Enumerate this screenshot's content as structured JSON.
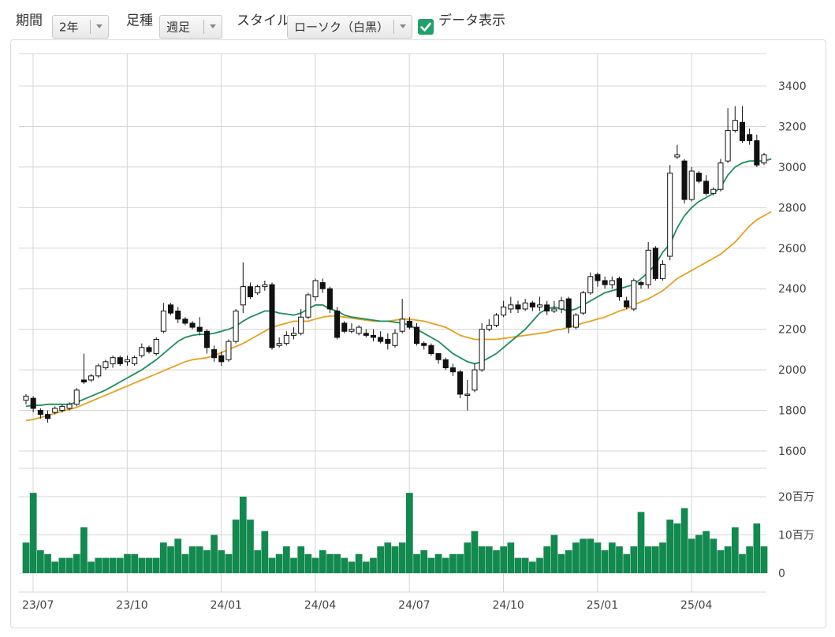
{
  "toolbar": {
    "period_label": "期間",
    "period_value": "2年",
    "interval_label": "足種",
    "interval_value": "週足",
    "style_label": "スタイル",
    "style_value": "ローソク（白黒）",
    "show_data_label": "データ表示",
    "show_data_checked": true
  },
  "colors": {
    "ma_short": "#1a8f5c",
    "ma_long": "#e8a020",
    "volume_bar": "#12894e",
    "candle_up_fill": "#ffffff",
    "candle_down_fill": "#111111",
    "checkbox": "#22a06b"
  },
  "chart_data": {
    "type": "candlestick",
    "x_ticks": [
      "23/07",
      "23/10",
      "24/01",
      "24/04",
      "24/07",
      "24/10",
      "25/01",
      "25/04"
    ],
    "x_tick_index": [
      0,
      13,
      26,
      39,
      52,
      65,
      78,
      91
    ],
    "y_ticks": [
      "1600",
      "1800",
      "2000",
      "2200",
      "2400",
      "2600",
      "2800",
      "3000",
      "3200",
      "3400"
    ],
    "ylim": [
      1500,
      3400
    ],
    "volume_ticks": [
      "0",
      "10百万",
      "20百万"
    ],
    "volume_ylim": [
      0,
      20
    ],
    "volume_unit": "百万",
    "candles": [
      [
        1850,
        1870,
        1830,
        1880,
        8
      ],
      [
        1860,
        1810,
        1790,
        1870,
        21
      ],
      [
        1800,
        1780,
        1760,
        1810,
        6
      ],
      [
        1780,
        1760,
        1740,
        1800,
        5
      ],
      [
        1790,
        1810,
        1780,
        1820,
        3
      ],
      [
        1800,
        1820,
        1790,
        1830,
        4
      ],
      [
        1810,
        1830,
        1800,
        1840,
        4
      ],
      [
        1830,
        1900,
        1820,
        1910,
        5
      ],
      [
        1950,
        1940,
        1930,
        2080,
        12
      ],
      [
        1950,
        1970,
        1940,
        1980,
        3
      ],
      [
        1970,
        2020,
        1960,
        2030,
        4
      ],
      [
        2010,
        2040,
        2000,
        2050,
        4
      ],
      [
        2030,
        2060,
        2010,
        2070,
        4
      ],
      [
        2060,
        2030,
        2020,
        2070,
        4
      ],
      [
        2040,
        2050,
        2020,
        2070,
        5
      ],
      [
        2030,
        2060,
        2020,
        2070,
        5
      ],
      [
        2070,
        2110,
        2060,
        2130,
        4
      ],
      [
        2110,
        2090,
        2080,
        2120,
        4
      ],
      [
        2080,
        2150,
        2070,
        2160,
        4
      ],
      [
        2190,
        2290,
        2180,
        2330,
        8
      ],
      [
        2320,
        2280,
        2270,
        2330,
        7
      ],
      [
        2290,
        2250,
        2230,
        2310,
        9
      ],
      [
        2250,
        2230,
        2220,
        2260,
        5
      ],
      [
        2230,
        2210,
        2200,
        2240,
        7
      ],
      [
        2210,
        2190,
        2170,
        2260,
        7
      ],
      [
        2190,
        2110,
        2080,
        2200,
        6
      ],
      [
        2100,
        2060,
        2040,
        2120,
        10
      ],
      [
        2070,
        2040,
        2020,
        2090,
        6
      ],
      [
        2050,
        2140,
        2040,
        2150,
        5
      ],
      [
        2140,
        2290,
        2130,
        2300,
        14
      ],
      [
        2320,
        2410,
        2280,
        2530,
        20
      ],
      [
        2410,
        2360,
        2350,
        2430,
        14
      ],
      [
        2380,
        2410,
        2370,
        2420,
        6
      ],
      [
        2410,
        2420,
        2390,
        2440,
        11
      ],
      [
        2420,
        2110,
        2100,
        2430,
        4
      ],
      [
        2120,
        2130,
        2110,
        2160,
        5
      ],
      [
        2130,
        2170,
        2120,
        2190,
        7
      ],
      [
        2170,
        2180,
        2150,
        2210,
        4
      ],
      [
        2180,
        2260,
        2170,
        2300,
        7
      ],
      [
        2260,
        2370,
        2250,
        2380,
        5
      ],
      [
        2360,
        2440,
        2340,
        2450,
        4
      ],
      [
        2430,
        2400,
        2380,
        2450,
        6
      ],
      [
        2400,
        2300,
        2280,
        2410,
        5
      ],
      [
        2290,
        2160,
        2150,
        2310,
        5
      ],
      [
        2230,
        2190,
        2180,
        2240,
        4
      ],
      [
        2190,
        2200,
        2180,
        2230,
        3
      ],
      [
        2180,
        2210,
        2170,
        2220,
        5
      ],
      [
        2180,
        2170,
        2160,
        2200,
        3
      ],
      [
        2170,
        2160,
        2140,
        2200,
        4
      ],
      [
        2160,
        2140,
        2130,
        2190,
        7
      ],
      [
        2150,
        2130,
        2100,
        2180,
        8
      ],
      [
        2120,
        2180,
        2110,
        2200,
        7
      ],
      [
        2190,
        2250,
        2180,
        2350,
        8
      ],
      [
        2240,
        2210,
        2200,
        2260,
        21
      ],
      [
        2210,
        2130,
        2120,
        2230,
        5
      ],
      [
        2130,
        2120,
        2100,
        2140,
        6
      ],
      [
        2120,
        2080,
        2070,
        2130,
        4
      ],
      [
        2080,
        2050,
        2030,
        2080,
        5
      ],
      [
        2050,
        2010,
        2000,
        2060,
        4
      ],
      [
        2010,
        1990,
        1970,
        2030,
        5
      ],
      [
        1990,
        1880,
        1860,
        2000,
        5
      ],
      [
        1880,
        1880,
        1800,
        1950,
        8
      ],
      [
        1900,
        2000,
        1890,
        2030,
        11
      ],
      [
        2000,
        2200,
        1990,
        2230,
        7
      ],
      [
        2200,
        2220,
        2190,
        2250,
        7
      ],
      [
        2220,
        2270,
        2210,
        2280,
        6
      ],
      [
        2270,
        2310,
        2260,
        2340,
        7
      ],
      [
        2300,
        2320,
        2280,
        2360,
        8
      ],
      [
        2320,
        2300,
        2280,
        2340,
        4
      ],
      [
        2300,
        2330,
        2290,
        2350,
        4
      ],
      [
        2330,
        2310,
        2290,
        2340,
        3
      ],
      [
        2310,
        2320,
        2290,
        2360,
        4
      ],
      [
        2320,
        2290,
        2270,
        2340,
        7
      ],
      [
        2290,
        2300,
        2280,
        2340,
        10
      ],
      [
        2300,
        2340,
        2280,
        2360,
        5
      ],
      [
        2350,
        2210,
        2180,
        2360,
        6
      ],
      [
        2210,
        2270,
        2200,
        2280,
        8
      ],
      [
        2280,
        2380,
        2270,
        2390,
        9
      ],
      [
        2380,
        2460,
        2370,
        2480,
        9
      ],
      [
        2470,
        2440,
        2410,
        2480,
        8
      ],
      [
        2440,
        2420,
        2400,
        2460,
        6
      ],
      [
        2420,
        2440,
        2400,
        2460,
        8
      ],
      [
        2450,
        2360,
        2340,
        2460,
        7
      ],
      [
        2340,
        2310,
        2300,
        2360,
        5
      ],
      [
        2300,
        2440,
        2290,
        2450,
        7
      ],
      [
        2430,
        2420,
        2400,
        2440,
        16
      ],
      [
        2420,
        2590,
        2400,
        2630,
        7
      ],
      [
        2600,
        2450,
        2440,
        2610,
        7
      ],
      [
        2450,
        2520,
        2440,
        2540,
        8
      ],
      [
        2560,
        2970,
        2540,
        3010,
        14
      ],
      [
        3050,
        3060,
        3040,
        3110,
        13
      ],
      [
        3030,
        2840,
        2820,
        3040,
        17
      ],
      [
        2840,
        2980,
        2830,
        3000,
        9
      ],
      [
        2970,
        2930,
        2920,
        2980,
        10
      ],
      [
        2930,
        2870,
        2860,
        2960,
        11
      ],
      [
        2870,
        2890,
        2860,
        2900,
        9
      ],
      [
        2890,
        3020,
        2880,
        3040,
        6
      ],
      [
        3030,
        3180,
        3020,
        3290,
        7
      ],
      [
        3180,
        3230,
        3170,
        3300,
        12
      ],
      [
        3220,
        3130,
        3120,
        3300,
        5
      ],
      [
        3160,
        3130,
        3110,
        3190,
        7
      ],
      [
        3130,
        3010,
        3000,
        3160,
        13
      ],
      [
        3020,
        3060,
        3010,
        3070,
        7
      ]
    ],
    "ma_short": [
      1820,
      1825,
      1825,
      1830,
      1830,
      1830,
      1830,
      1840,
      1855,
      1870,
      1885,
      1900,
      1920,
      1940,
      1960,
      1980,
      2000,
      2025,
      2050,
      2080,
      2110,
      2140,
      2160,
      2170,
      2175,
      2175,
      2180,
      2190,
      2200,
      2215,
      2240,
      2260,
      2275,
      2290,
      2290,
      2280,
      2275,
      2270,
      2280,
      2300,
      2320,
      2320,
      2300,
      2290,
      2270,
      2260,
      2255,
      2250,
      2245,
      2240,
      2240,
      2235,
      2230,
      2220,
      2200,
      2180,
      2160,
      2140,
      2110,
      2080,
      2060,
      2040,
      2030,
      2040,
      2060,
      2080,
      2110,
      2140,
      2170,
      2200,
      2240,
      2280,
      2300,
      2310,
      2300,
      2290,
      2300,
      2320,
      2340,
      2360,
      2380,
      2390,
      2400,
      2410,
      2420,
      2450,
      2480,
      2520,
      2580,
      2620,
      2700,
      2760,
      2800,
      2830,
      2850,
      2870,
      2900,
      2960,
      3000,
      3020,
      3030,
      3030,
      3030,
      3040
    ],
    "ma_long": [
      1750,
      1755,
      1765,
      1775,
      1785,
      1795,
      1805,
      1815,
      1830,
      1845,
      1860,
      1875,
      1890,
      1905,
      1920,
      1935,
      1950,
      1965,
      1980,
      1995,
      2010,
      2025,
      2040,
      2050,
      2055,
      2060,
      2070,
      2085,
      2100,
      2115,
      2130,
      2150,
      2170,
      2190,
      2210,
      2220,
      2230,
      2240,
      2240,
      2240,
      2250,
      2260,
      2265,
      2265,
      2260,
      2255,
      2250,
      2245,
      2240,
      2240,
      2240,
      2245,
      2250,
      2250,
      2245,
      2240,
      2230,
      2220,
      2210,
      2190,
      2170,
      2160,
      2150,
      2150,
      2150,
      2150,
      2155,
      2160,
      2165,
      2170,
      2175,
      2180,
      2185,
      2195,
      2200,
      2210,
      2220,
      2230,
      2240,
      2250,
      2260,
      2275,
      2290,
      2300,
      2320,
      2335,
      2350,
      2370,
      2390,
      2420,
      2450,
      2470,
      2490,
      2510,
      2530,
      2550,
      2570,
      2600,
      2630,
      2670,
      2710,
      2740,
      2760,
      2780
    ]
  }
}
